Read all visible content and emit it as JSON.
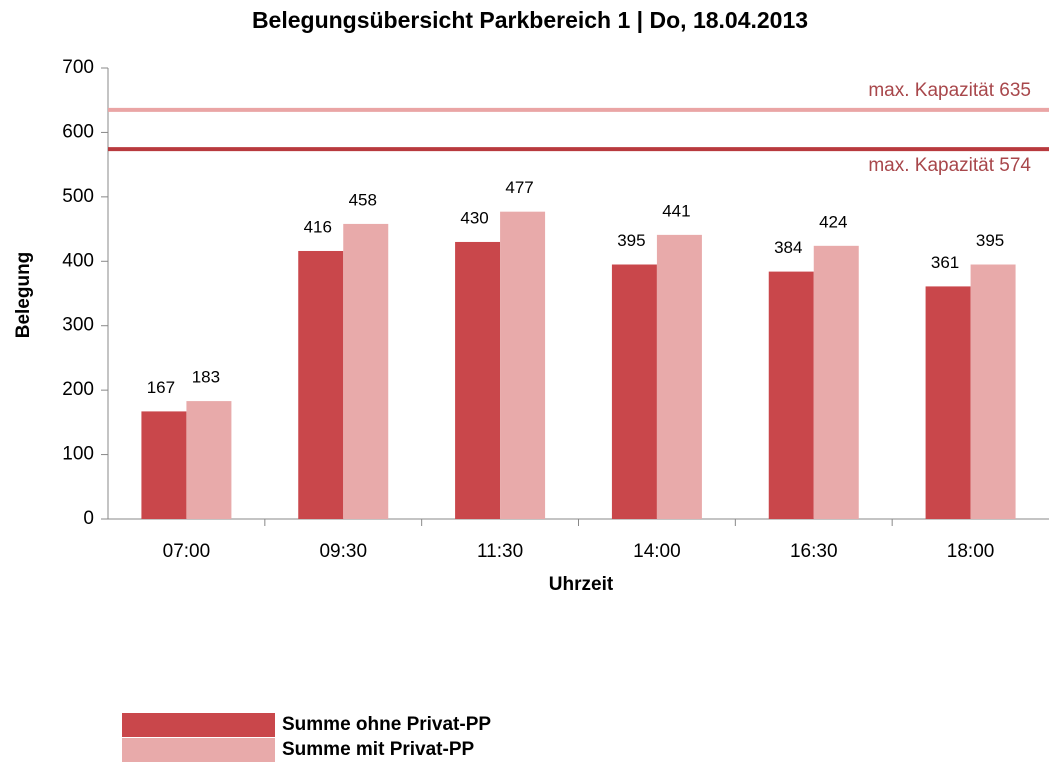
{
  "chart_data": {
    "type": "bar",
    "title": "Belegungsübersicht Parkbereich 1 | Do, 18.04.2013",
    "x_label": "Uhrzeit",
    "y_label": "Belegung",
    "categories": [
      "07:00",
      "09:30",
      "11:30",
      "14:00",
      "16:30",
      "18:00"
    ],
    "series": [
      {
        "name": "Summe ohne Privat-PP",
        "color": "#c9474b",
        "values": [
          167,
          416,
          430,
          395,
          384,
          361
        ]
      },
      {
        "name": "Summe mit Privat-PP",
        "color": "#e8aaaa",
        "values": [
          183,
          458,
          477,
          441,
          424,
          395
        ]
      }
    ],
    "reference_lines": [
      {
        "value": 635,
        "label": "max. Kapazität 635",
        "color": "#eaa5a5"
      },
      {
        "value": 574,
        "label": "max. Kapazität 574",
        "color": "#b83a3e"
      }
    ],
    "ylim": [
      0,
      700
    ],
    "yticks": [
      0,
      100,
      200,
      300,
      400,
      500,
      600,
      700
    ],
    "legend": "bottom-left"
  }
}
